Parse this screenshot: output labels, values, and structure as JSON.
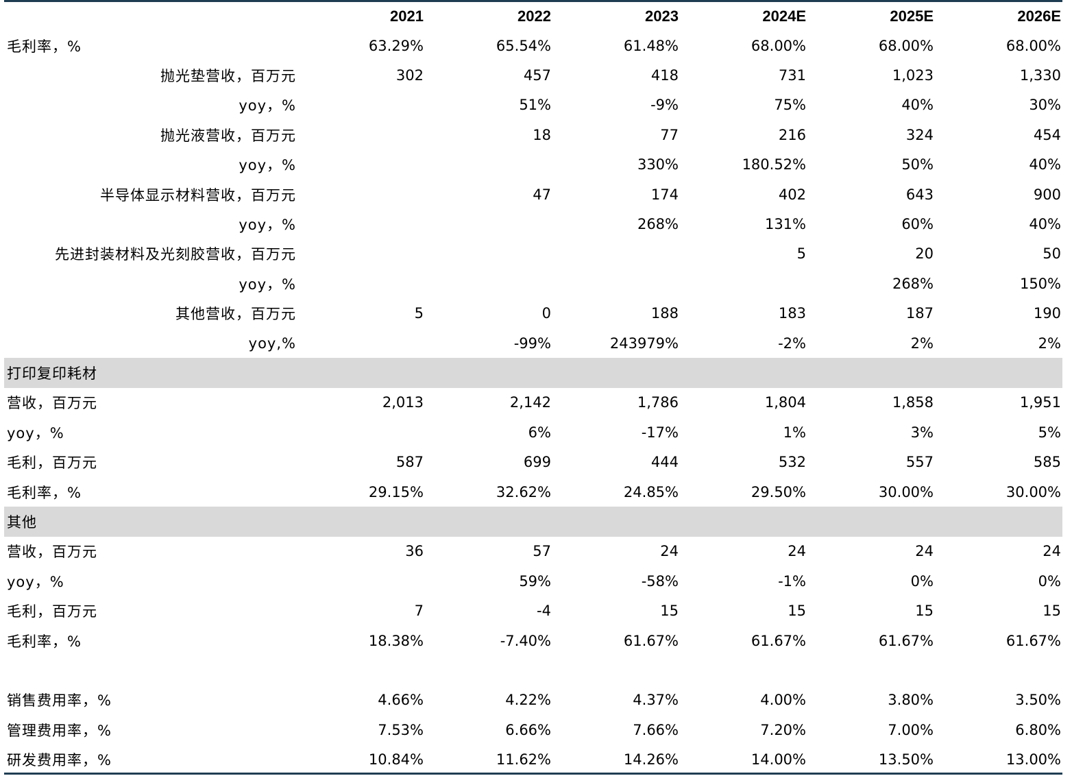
{
  "columns": [
    "2021",
    "2022",
    "2023",
    "2024E",
    "2025E",
    "2026E"
  ],
  "rows": [
    {
      "type": "data",
      "align": "left",
      "label": "毛利率，%",
      "values": [
        "63.29%",
        "65.54%",
        "61.48%",
        "68.00%",
        "68.00%",
        "68.00%"
      ]
    },
    {
      "type": "data",
      "align": "right",
      "label": "抛光垫营收，百万元",
      "values": [
        "302",
        "457",
        "418",
        "731",
        "1,023",
        "1,330"
      ]
    },
    {
      "type": "data",
      "align": "right",
      "label": "yoy，%",
      "values": [
        "",
        "51%",
        "-9%",
        "75%",
        "40%",
        "30%"
      ]
    },
    {
      "type": "data",
      "align": "right",
      "label": "抛光液营收，百万元",
      "values": [
        "",
        "18",
        "77",
        "216",
        "324",
        "454"
      ]
    },
    {
      "type": "data",
      "align": "right",
      "label": "yoy，%",
      "values": [
        "",
        "",
        "330%",
        "180.52%",
        "50%",
        "40%"
      ]
    },
    {
      "type": "data",
      "align": "right",
      "label": "半导体显示材料营收，百万元",
      "values": [
        "",
        "47",
        "174",
        "402",
        "643",
        "900"
      ]
    },
    {
      "type": "data",
      "align": "right",
      "label": "yoy，%",
      "values": [
        "",
        "",
        "268%",
        "131%",
        "60%",
        "40%"
      ]
    },
    {
      "type": "data",
      "align": "right",
      "label": "先进封装材料及光刻胶营收，百万元",
      "values": [
        "",
        "",
        "",
        "5",
        "20",
        "50"
      ]
    },
    {
      "type": "data",
      "align": "right",
      "label": "yoy，%",
      "values": [
        "",
        "",
        "",
        "",
        "268%",
        "150%"
      ]
    },
    {
      "type": "data",
      "align": "right",
      "label": "其他营收，百万元",
      "values": [
        "5",
        "0",
        "188",
        "183",
        "187",
        "190"
      ]
    },
    {
      "type": "data",
      "align": "right",
      "label": "yoy,%",
      "values": [
        "",
        "-99%",
        "243979%",
        "-2%",
        "2%",
        "2%"
      ]
    },
    {
      "type": "section",
      "label": "打印复印耗材"
    },
    {
      "type": "data",
      "align": "left",
      "label": "营收，百万元",
      "values": [
        "2,013",
        "2,142",
        "1,786",
        "1,804",
        "1,858",
        "1,951"
      ]
    },
    {
      "type": "data",
      "align": "left",
      "label": "yoy，%",
      "values": [
        "",
        "6%",
        "-17%",
        "1%",
        "3%",
        "5%"
      ]
    },
    {
      "type": "data",
      "align": "left",
      "label": "毛利，百万元",
      "values": [
        "587",
        "699",
        "444",
        "532",
        "557",
        "585"
      ]
    },
    {
      "type": "data",
      "align": "left",
      "label": "毛利率，%",
      "values": [
        "29.15%",
        "32.62%",
        "24.85%",
        "29.50%",
        "30.00%",
        "30.00%"
      ]
    },
    {
      "type": "section",
      "label": "其他"
    },
    {
      "type": "data",
      "align": "left",
      "label": "营收，百万元",
      "values": [
        "36",
        "57",
        "24",
        "24",
        "24",
        "24"
      ]
    },
    {
      "type": "data",
      "align": "left",
      "label": "yoy，%",
      "values": [
        "",
        "59%",
        "-58%",
        "-1%",
        "0%",
        "0%"
      ]
    },
    {
      "type": "data",
      "align": "left",
      "label": "毛利，百万元",
      "values": [
        "7",
        "-4",
        "15",
        "15",
        "15",
        "15"
      ]
    },
    {
      "type": "data",
      "align": "left",
      "label": "毛利率，%",
      "values": [
        "18.38%",
        "-7.40%",
        "61.67%",
        "61.67%",
        "61.67%",
        "61.67%"
      ]
    },
    {
      "type": "blank"
    },
    {
      "type": "data",
      "align": "left",
      "label": "销售费用率，%",
      "values": [
        "4.66%",
        "4.22%",
        "4.37%",
        "4.00%",
        "3.80%",
        "3.50%"
      ]
    },
    {
      "type": "data",
      "align": "left",
      "label": "管理费用率，%",
      "values": [
        "7.53%",
        "6.66%",
        "7.66%",
        "7.20%",
        "7.00%",
        "6.80%"
      ]
    },
    {
      "type": "data",
      "align": "left",
      "label": "研发费用率，%",
      "values": [
        "10.84%",
        "11.62%",
        "14.26%",
        "14.00%",
        "13.50%",
        "13.00%"
      ]
    }
  ],
  "colors": {
    "rule": "#1f3d52",
    "section_bg": "#d9d9d9"
  }
}
